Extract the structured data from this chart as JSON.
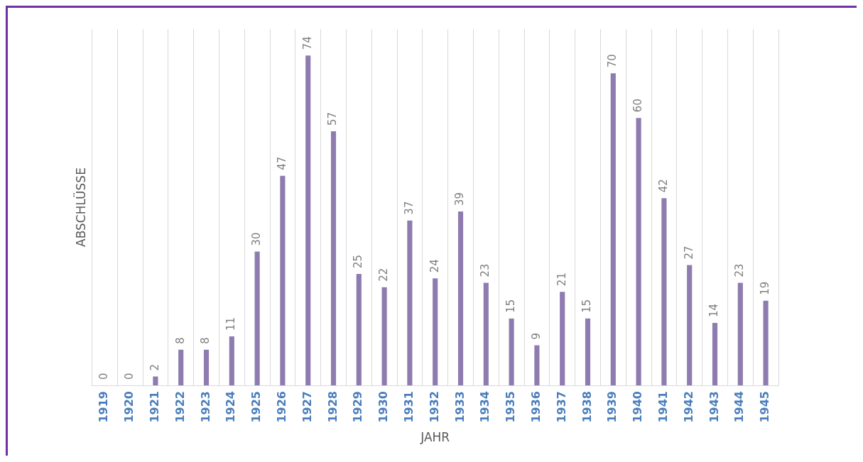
{
  "chart_data": {
    "type": "bar",
    "xlabel": "JAHR",
    "ylabel": "ABSCHLÜSSE",
    "categories": [
      "1919",
      "1920",
      "1921",
      "1922",
      "1923",
      "1924",
      "1925",
      "1926",
      "1927",
      "1928",
      "1929",
      "1930",
      "1931",
      "1932",
      "1933",
      "1934",
      "1935",
      "1936",
      "1937",
      "1938",
      "1939",
      "1940",
      "1941",
      "1942",
      "1943",
      "1944",
      "1945"
    ],
    "values": [
      0,
      0,
      2,
      8,
      8,
      11,
      30,
      47,
      74,
      57,
      25,
      22,
      37,
      24,
      39,
      23,
      15,
      9,
      21,
      15,
      70,
      60,
      42,
      27,
      14,
      23,
      19
    ],
    "color": "#8e7cb0",
    "data_labels": true,
    "grid": "x",
    "tick_labels": "x",
    "legend": false
  }
}
